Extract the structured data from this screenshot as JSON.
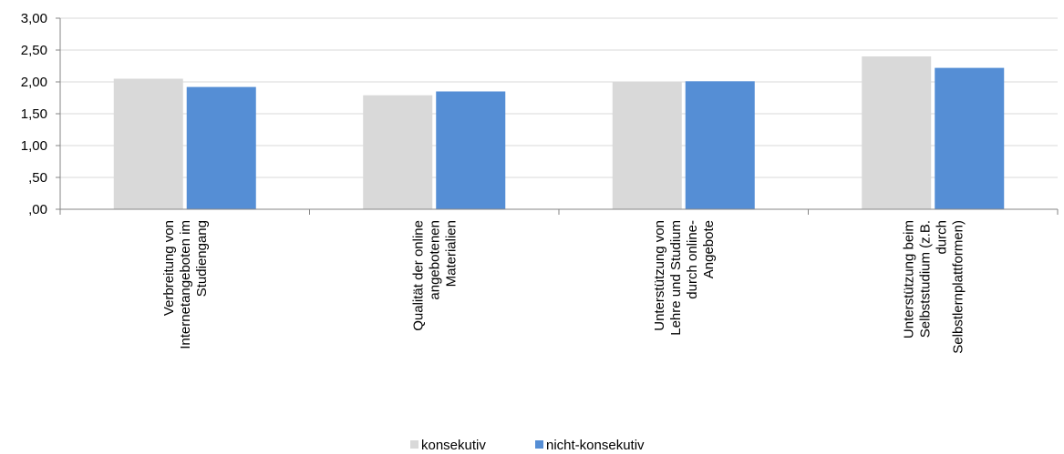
{
  "chart_data": {
    "type": "bar",
    "categories": [
      [
        "Verbreitung von",
        "Internetangeboten im",
        "Studiengang"
      ],
      [
        "Qualität der online",
        "angebotenen",
        "Materialien"
      ],
      [
        "Unterstützung von",
        "Lehre und Studium",
        "durch online-",
        "Angebote"
      ],
      [
        "Unterstützung beim",
        "Selbststudium (z.B.",
        "durch",
        "Selbstlernplattformen)"
      ]
    ],
    "series": [
      {
        "name": "konsekutiv",
        "color": "#d9d9d9",
        "values": [
          2.05,
          1.79,
          2.0,
          2.4
        ]
      },
      {
        "name": "nicht-konsekutiv",
        "color": "#558ed5",
        "values": [
          1.92,
          1.85,
          2.01,
          2.22
        ]
      }
    ],
    "ylim": [
      0,
      3
    ],
    "yticks": [
      ",00",
      ",50",
      "1,00",
      "1,50",
      "2,00",
      "2,50",
      "3,00"
    ],
    "grid": true,
    "legend": "bottom-center",
    "title": "",
    "xlabel": "",
    "ylabel": ""
  }
}
